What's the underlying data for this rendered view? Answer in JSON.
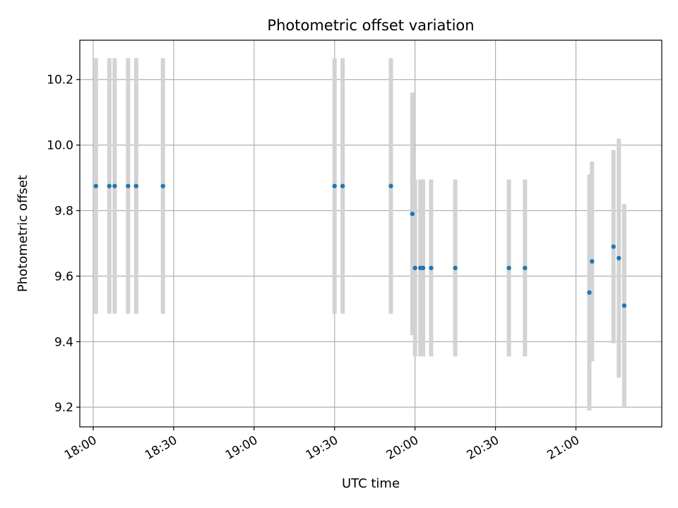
{
  "chart_data": {
    "type": "scatter",
    "title": "Photometric offset variation",
    "xlabel": "UTC time",
    "ylabel": "Photometric offset",
    "x_ticks": [
      "18:00",
      "18:30",
      "19:00",
      "19:30",
      "20:00",
      "20:30",
      "21:00"
    ],
    "y_ticks": [
      "9.2",
      "9.4",
      "9.6",
      "9.8",
      "10.0",
      "10.2"
    ],
    "xlim": [
      "17:55",
      "21:32"
    ],
    "ylim": [
      9.14,
      10.32
    ],
    "grid": true,
    "colors": {
      "marker": "#1f77b4",
      "errorbar": "#d3d3d3",
      "grid": "#b0b0b0"
    },
    "series": [
      {
        "points": [
          {
            "x": "18:01",
            "y": 9.875,
            "err": 0.39
          },
          {
            "x": "18:06",
            "y": 9.875,
            "err": 0.39
          },
          {
            "x": "18:08",
            "y": 9.875,
            "err": 0.39
          },
          {
            "x": "18:13",
            "y": 9.875,
            "err": 0.39
          },
          {
            "x": "18:16",
            "y": 9.875,
            "err": 0.39
          },
          {
            "x": "18:26",
            "y": 9.875,
            "err": 0.39
          },
          {
            "x": "19:30",
            "y": 9.875,
            "err": 0.39
          },
          {
            "x": "19:33",
            "y": 9.875,
            "err": 0.39
          },
          {
            "x": "19:51",
            "y": 9.875,
            "err": 0.39
          },
          {
            "x": "19:59",
            "y": 9.79,
            "err": 0.37
          },
          {
            "x": "20:00",
            "y": 9.625,
            "err": 0.27
          },
          {
            "x": "20:02",
            "y": 9.625,
            "err": 0.27
          },
          {
            "x": "20:03",
            "y": 9.625,
            "err": 0.27
          },
          {
            "x": "20:06",
            "y": 9.625,
            "err": 0.27
          },
          {
            "x": "20:15",
            "y": 9.625,
            "err": 0.27
          },
          {
            "x": "20:35",
            "y": 9.625,
            "err": 0.27
          },
          {
            "x": "20:41",
            "y": 9.625,
            "err": 0.27
          },
          {
            "x": "21:05",
            "y": 9.55,
            "err": 0.36
          },
          {
            "x": "21:06",
            "y": 9.645,
            "err": 0.305
          },
          {
            "x": "21:14",
            "y": 9.69,
            "err": 0.295
          },
          {
            "x": "21:16",
            "y": 9.655,
            "err": 0.365
          },
          {
            "x": "21:18",
            "y": 9.51,
            "err": 0.31
          }
        ]
      }
    ]
  }
}
